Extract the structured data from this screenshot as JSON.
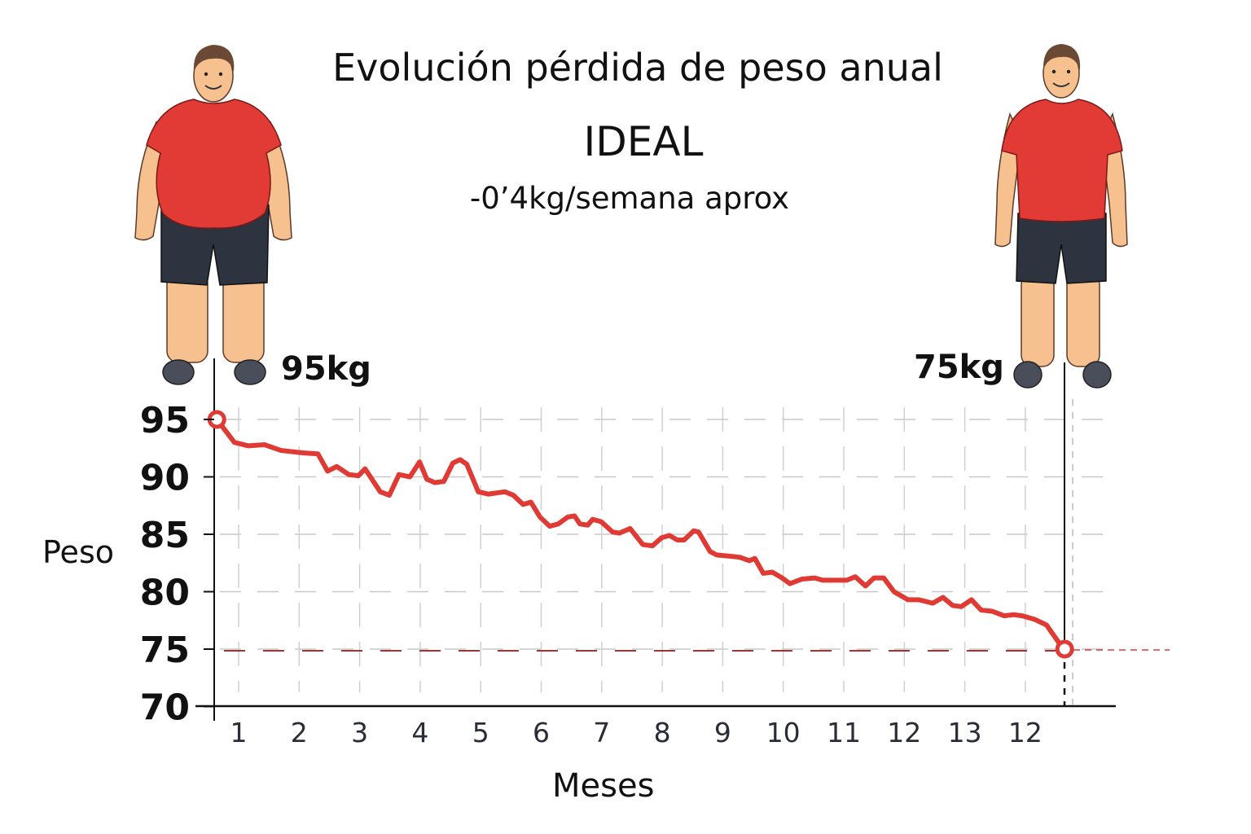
{
  "chart_data": {
    "type": "line",
    "title": "Evolución pérdida de peso anual",
    "subtitle_main": "IDEAL",
    "subtitle_rate": "-0’4kg/semana aprox",
    "xlabel": "Meses",
    "ylabel": "Peso",
    "x_tick_labels": [
      "1",
      "2",
      "3",
      "4",
      "5",
      "6",
      "7",
      "8",
      "9",
      "10",
      "11",
      "12",
      "13",
      "12"
    ],
    "y_ticks": [
      95,
      90,
      85,
      80,
      75,
      70
    ],
    "ylim": [
      70,
      95
    ],
    "grid": true,
    "line_color": "#e03a35",
    "reference_color": "#8b1a1a",
    "annotations": {
      "start": "95kg",
      "end": "75kg"
    },
    "reference_weight": 75,
    "series": [
      {
        "x": [
          0.64,
          0.93,
          1.16,
          1.43,
          1.7,
          2.04,
          2.31,
          2.47,
          2.62,
          2.82,
          2.98,
          3.09,
          3.34,
          3.49,
          3.65,
          3.83,
          3.99,
          4.11,
          4.24,
          4.39,
          4.54,
          4.66,
          4.77,
          4.96,
          5.13,
          5.4,
          5.54,
          5.7,
          5.83,
          5.98,
          6.14,
          6.28,
          6.44,
          6.55,
          6.64,
          6.77,
          6.85,
          6.99,
          7.18,
          7.29,
          7.47,
          7.68,
          7.84,
          7.99,
          8.12,
          8.25,
          8.36,
          8.52,
          8.6,
          8.79,
          8.9,
          9.1,
          9.28,
          9.44,
          9.53,
          9.67,
          9.82,
          9.98,
          10.11,
          10.31,
          10.52,
          10.65,
          10.85,
          11.05,
          11.19,
          11.36,
          11.5,
          11.66,
          11.83,
          12.06,
          12.24,
          12.47,
          12.64,
          12.8,
          12.94,
          13.11,
          13.27,
          13.45,
          13.65,
          13.81,
          13.95,
          14.15,
          14.35,
          14.55,
          14.65
        ],
        "y": [
          95.0,
          93.0,
          92.7,
          92.8,
          92.3,
          92.1,
          92.0,
          90.5,
          90.9,
          90.2,
          90.1,
          90.7,
          88.7,
          88.4,
          90.2,
          90.0,
          91.3,
          89.8,
          89.5,
          89.6,
          91.2,
          91.5,
          91.1,
          88.7,
          88.5,
          88.7,
          88.4,
          87.6,
          87.8,
          86.5,
          85.7,
          85.9,
          86.5,
          86.6,
          85.9,
          85.8,
          86.3,
          86.1,
          85.2,
          85.1,
          85.5,
          84.1,
          84.0,
          84.7,
          84.9,
          84.5,
          84.5,
          85.3,
          85.2,
          83.5,
          83.2,
          83.1,
          83.0,
          82.7,
          82.9,
          81.6,
          81.7,
          81.2,
          80.7,
          81.1,
          81.2,
          81.0,
          81.0,
          81.0,
          81.3,
          80.5,
          81.2,
          81.2,
          80.0,
          79.3,
          79.3,
          79.0,
          79.5,
          78.8,
          78.7,
          79.3,
          78.4,
          78.3,
          77.9,
          78.0,
          77.9,
          77.6,
          77.1,
          75.6,
          75.0
        ]
      }
    ]
  },
  "illustrations": {
    "before": "overweight-man-icon",
    "after": "fit-man-icon",
    "shirt_color": "#e23b35",
    "shorts_color": "#2e3340",
    "skin_color": "#f6c08f"
  }
}
